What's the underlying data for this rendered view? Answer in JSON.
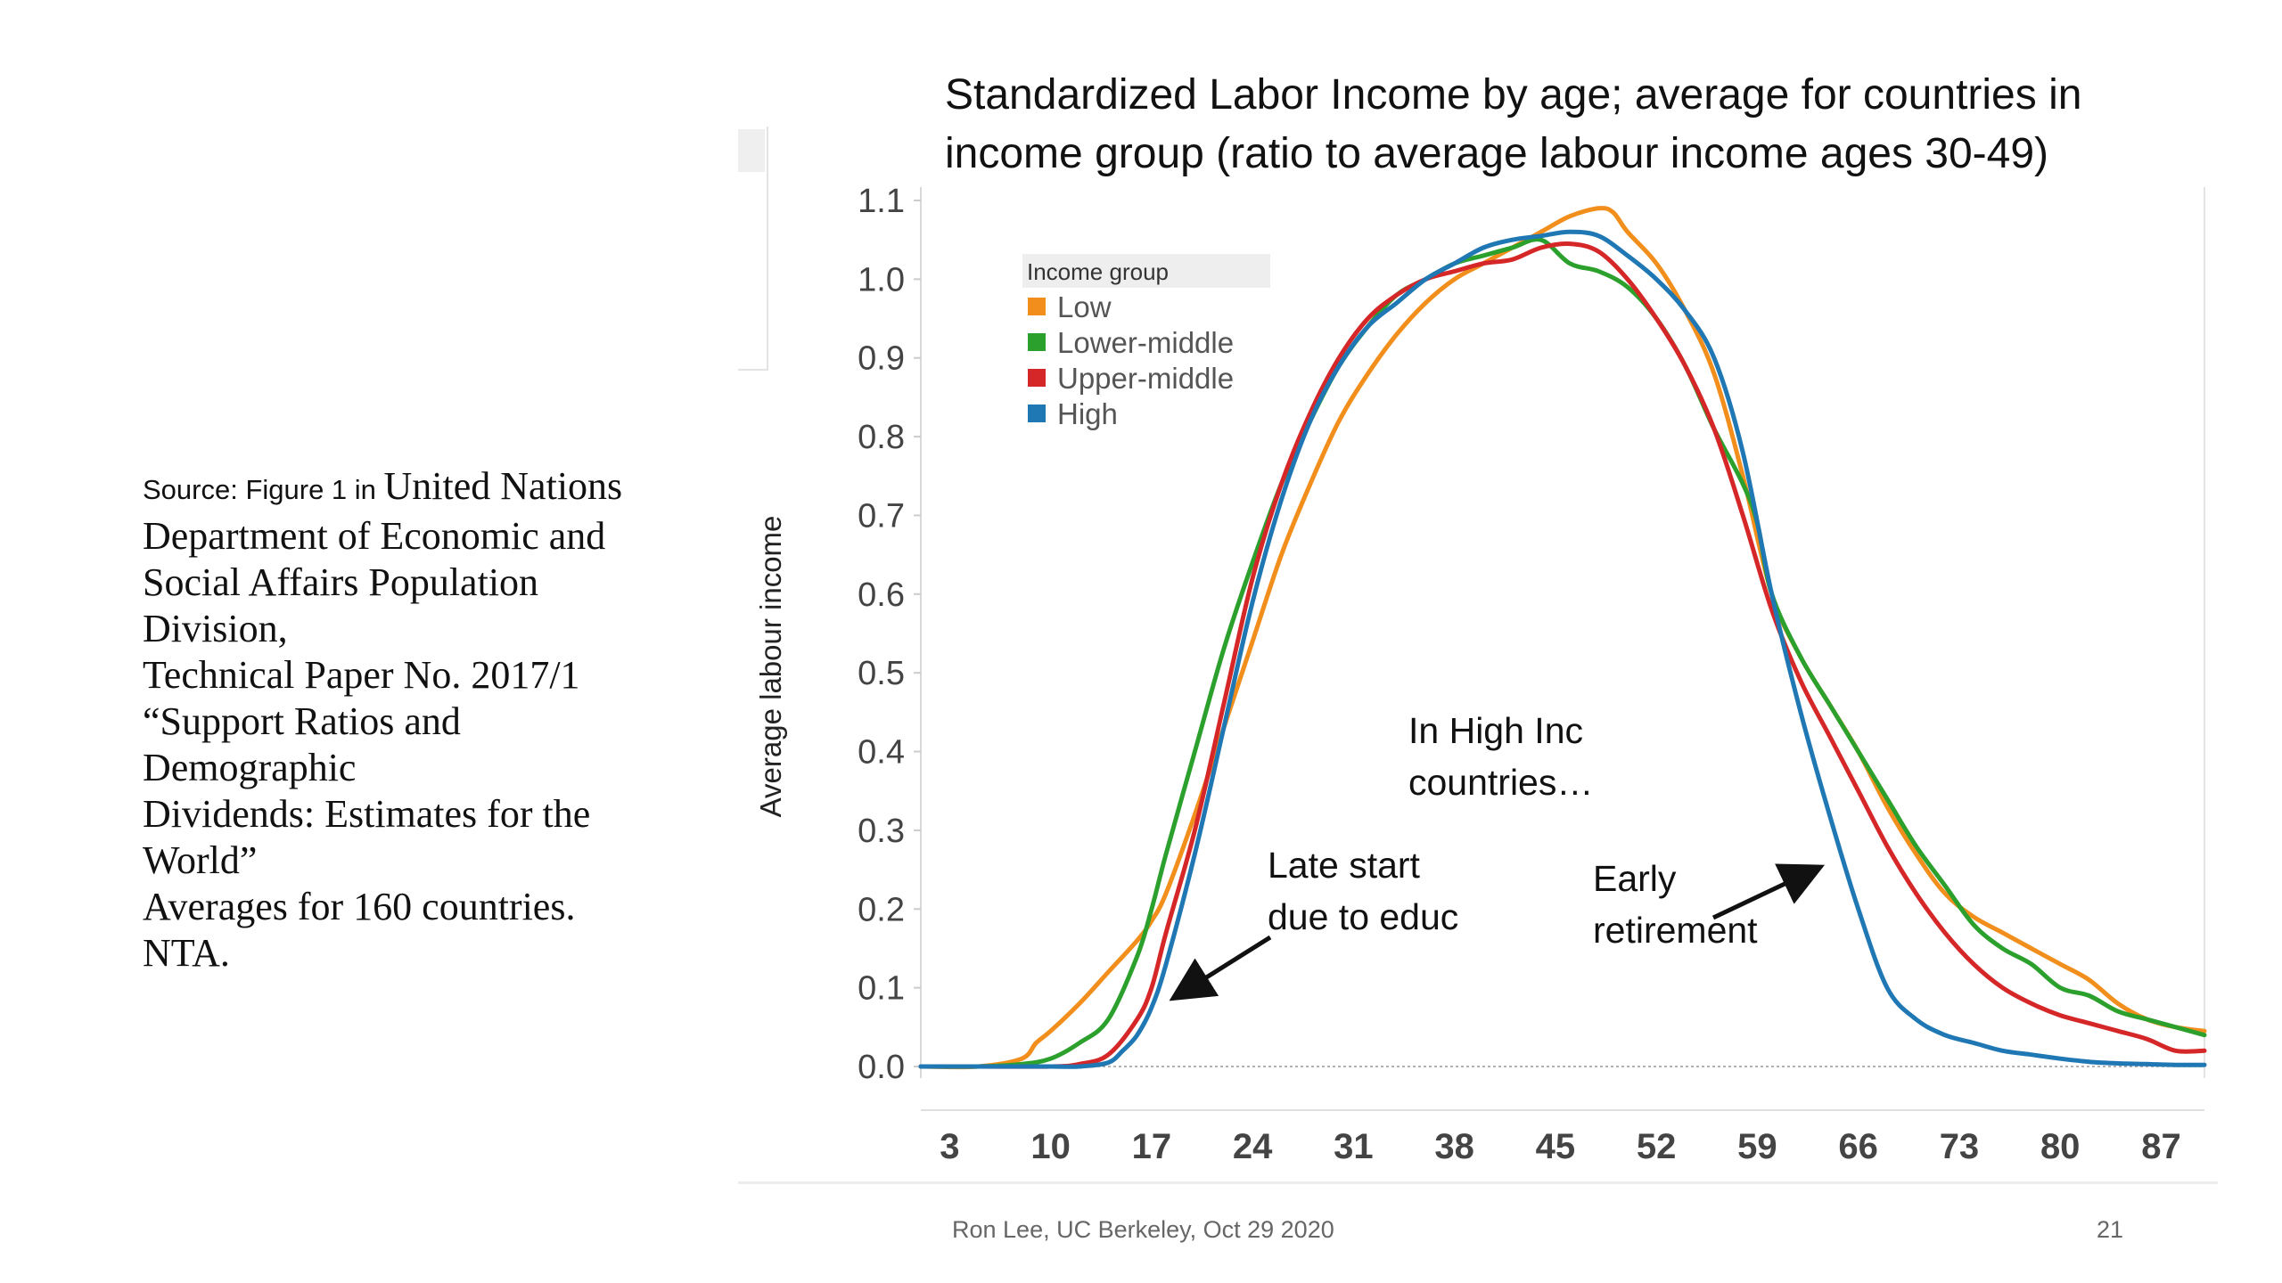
{
  "source": {
    "prefix": "Source: Figure 1 in ",
    "first_line": "United Nations",
    "lines": [
      "Department of Economic and",
      "Social Affairs Population",
      "Division,",
      "Technical Paper No. 2017/1",
      "“Support Ratios and",
      "Demographic",
      "Dividends: Estimates for the",
      "World”",
      "Averages for 160 countries.",
      "NTA."
    ]
  },
  "title_lines": [
    "Standardized Labor Income by age; average for countries in",
    "income group (ratio to average labour income ages 30-49)"
  ],
  "annotations": {
    "high_inc": [
      "In High Inc",
      "countries…"
    ],
    "late_start": [
      "Late start",
      "due to educ"
    ],
    "early_retirement": [
      "Early",
      "retirement"
    ]
  },
  "footer": {
    "author": "Ron Lee, UC Berkeley, Oct 29 2020",
    "page": "21"
  },
  "chart_data": {
    "type": "line",
    "ylabel": "Average labour income",
    "xlabel": "",
    "ylim": [
      0,
      1.1
    ],
    "xlim": [
      1,
      90
    ],
    "y_ticks": [
      "0.0",
      "0.1",
      "0.2",
      "0.3",
      "0.4",
      "0.5",
      "0.6",
      "0.7",
      "0.8",
      "0.9",
      "1.0",
      "1.1"
    ],
    "x_ticks": [
      "3",
      "10",
      "17",
      "24",
      "31",
      "38",
      "45",
      "52",
      "59",
      "66",
      "73",
      "80",
      "87"
    ],
    "legend": {
      "title": "Income group",
      "position": "top-left"
    },
    "grid": false,
    "series": [
      {
        "name": "Low",
        "color": "#f28e1c",
        "points": [
          [
            1,
            0
          ],
          [
            5,
            0
          ],
          [
            8,
            0.01
          ],
          [
            9,
            0.03
          ],
          [
            10,
            0.045
          ],
          [
            12,
            0.08
          ],
          [
            14,
            0.12
          ],
          [
            16,
            0.16
          ],
          [
            17,
            0.185
          ],
          [
            18,
            0.22
          ],
          [
            20,
            0.32
          ],
          [
            22,
            0.43
          ],
          [
            24,
            0.54
          ],
          [
            26,
            0.65
          ],
          [
            28,
            0.74
          ],
          [
            30,
            0.82
          ],
          [
            32,
            0.88
          ],
          [
            34,
            0.93
          ],
          [
            36,
            0.97
          ],
          [
            38,
            1.0
          ],
          [
            40,
            1.02
          ],
          [
            42,
            1.04
          ],
          [
            44,
            1.06
          ],
          [
            46,
            1.08
          ],
          [
            48,
            1.09
          ],
          [
            49,
            1.085
          ],
          [
            50,
            1.06
          ],
          [
            52,
            1.02
          ],
          [
            54,
            0.96
          ],
          [
            56,
            0.88
          ],
          [
            58,
            0.75
          ],
          [
            60,
            0.6
          ],
          [
            62,
            0.52
          ],
          [
            64,
            0.46
          ],
          [
            66,
            0.4
          ],
          [
            68,
            0.33
          ],
          [
            70,
            0.27
          ],
          [
            72,
            0.22
          ],
          [
            74,
            0.19
          ],
          [
            76,
            0.17
          ],
          [
            78,
            0.15
          ],
          [
            80,
            0.13
          ],
          [
            82,
            0.11
          ],
          [
            84,
            0.08
          ],
          [
            86,
            0.06
          ],
          [
            88,
            0.05
          ],
          [
            90,
            0.045
          ]
        ]
      },
      {
        "name": "Lower-middle",
        "color": "#2ca02c",
        "points": [
          [
            1,
            0
          ],
          [
            5,
            0
          ],
          [
            8,
            0.003
          ],
          [
            10,
            0.01
          ],
          [
            12,
            0.03
          ],
          [
            14,
            0.06
          ],
          [
            16,
            0.14
          ],
          [
            17,
            0.2
          ],
          [
            18,
            0.27
          ],
          [
            20,
            0.4
          ],
          [
            22,
            0.53
          ],
          [
            24,
            0.64
          ],
          [
            26,
            0.74
          ],
          [
            28,
            0.82
          ],
          [
            30,
            0.89
          ],
          [
            32,
            0.94
          ],
          [
            34,
            0.98
          ],
          [
            36,
            1.0
          ],
          [
            38,
            1.02
          ],
          [
            40,
            1.03
          ],
          [
            42,
            1.04
          ],
          [
            44,
            1.05
          ],
          [
            46,
            1.02
          ],
          [
            48,
            1.01
          ],
          [
            50,
            0.99
          ],
          [
            52,
            0.95
          ],
          [
            54,
            0.89
          ],
          [
            56,
            0.81
          ],
          [
            58,
            0.74
          ],
          [
            59,
            0.69
          ],
          [
            60,
            0.6
          ],
          [
            62,
            0.52
          ],
          [
            64,
            0.46
          ],
          [
            66,
            0.4
          ],
          [
            68,
            0.34
          ],
          [
            70,
            0.28
          ],
          [
            72,
            0.23
          ],
          [
            74,
            0.18
          ],
          [
            76,
            0.15
          ],
          [
            78,
            0.13
          ],
          [
            80,
            0.1
          ],
          [
            82,
            0.09
          ],
          [
            84,
            0.07
          ],
          [
            86,
            0.06
          ],
          [
            88,
            0.05
          ],
          [
            90,
            0.04
          ]
        ]
      },
      {
        "name": "Upper-middle",
        "color": "#d62728",
        "points": [
          [
            1,
            0
          ],
          [
            5,
            0
          ],
          [
            10,
            0
          ],
          [
            12,
            0.003
          ],
          [
            14,
            0.015
          ],
          [
            16,
            0.06
          ],
          [
            17,
            0.1
          ],
          [
            18,
            0.17
          ],
          [
            20,
            0.3
          ],
          [
            22,
            0.46
          ],
          [
            24,
            0.62
          ],
          [
            26,
            0.74
          ],
          [
            28,
            0.83
          ],
          [
            30,
            0.9
          ],
          [
            32,
            0.95
          ],
          [
            34,
            0.98
          ],
          [
            36,
            1.0
          ],
          [
            38,
            1.01
          ],
          [
            40,
            1.02
          ],
          [
            42,
            1.025
          ],
          [
            44,
            1.04
          ],
          [
            46,
            1.045
          ],
          [
            48,
            1.035
          ],
          [
            50,
            1.0
          ],
          [
            52,
            0.95
          ],
          [
            54,
            0.89
          ],
          [
            56,
            0.81
          ],
          [
            58,
            0.7
          ],
          [
            60,
            0.58
          ],
          [
            62,
            0.49
          ],
          [
            64,
            0.42
          ],
          [
            66,
            0.35
          ],
          [
            68,
            0.28
          ],
          [
            70,
            0.22
          ],
          [
            72,
            0.17
          ],
          [
            74,
            0.13
          ],
          [
            76,
            0.1
          ],
          [
            78,
            0.08
          ],
          [
            80,
            0.065
          ],
          [
            82,
            0.055
          ],
          [
            84,
            0.045
          ],
          [
            86,
            0.035
          ],
          [
            88,
            0.02
          ],
          [
            90,
            0.02
          ]
        ]
      },
      {
        "name": "High",
        "color": "#1f77b4",
        "points": [
          [
            1,
            0
          ],
          [
            5,
            0
          ],
          [
            10,
            0
          ],
          [
            12,
            0
          ],
          [
            14,
            0.005
          ],
          [
            15,
            0.02
          ],
          [
            16,
            0.04
          ],
          [
            17,
            0.075
          ],
          [
            18,
            0.13
          ],
          [
            20,
            0.27
          ],
          [
            22,
            0.43
          ],
          [
            24,
            0.59
          ],
          [
            26,
            0.72
          ],
          [
            28,
            0.82
          ],
          [
            30,
            0.89
          ],
          [
            32,
            0.94
          ],
          [
            34,
            0.97
          ],
          [
            36,
            1.0
          ],
          [
            38,
            1.02
          ],
          [
            40,
            1.04
          ],
          [
            42,
            1.05
          ],
          [
            44,
            1.055
          ],
          [
            46,
            1.06
          ],
          [
            48,
            1.055
          ],
          [
            50,
            1.03
          ],
          [
            52,
            1.0
          ],
          [
            54,
            0.96
          ],
          [
            56,
            0.9
          ],
          [
            58,
            0.78
          ],
          [
            60,
            0.6
          ],
          [
            62,
            0.45
          ],
          [
            64,
            0.32
          ],
          [
            66,
            0.2
          ],
          [
            68,
            0.1
          ],
          [
            70,
            0.06
          ],
          [
            72,
            0.04
          ],
          [
            74,
            0.03
          ],
          [
            76,
            0.02
          ],
          [
            78,
            0.015
          ],
          [
            80,
            0.01
          ],
          [
            82,
            0.006
          ],
          [
            84,
            0.004
          ],
          [
            86,
            0.003
          ],
          [
            88,
            0.002
          ],
          [
            90,
            0.002
          ]
        ]
      }
    ]
  }
}
